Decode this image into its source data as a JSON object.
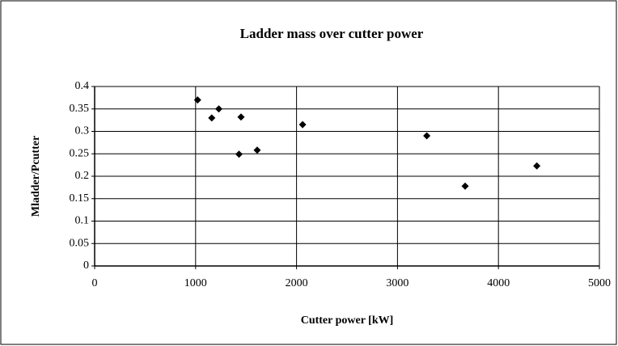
{
  "chart_data": {
    "type": "scatter",
    "title": "Ladder mass over cutter power",
    "x_label": "Cutter power [kW]",
    "y_label": "Mladder/Pcutter",
    "series": [
      {
        "name": "Mladder/Pcutter",
        "color": "#000000",
        "x": [
          1020,
          1160,
          1230,
          1450,
          1430,
          1610,
          2060,
          3290,
          3670,
          4380
        ],
        "values": [
          0.37,
          0.33,
          0.35,
          0.332,
          0.249,
          0.258,
          0.315,
          0.29,
          0.178,
          0.223
        ]
      }
    ],
    "xlim": [
      0,
      5000
    ],
    "xticks": [
      0,
      1000,
      2000,
      3000,
      4000,
      5000
    ],
    "ylim": [
      0,
      0.4
    ],
    "yticks": [
      0,
      0.05,
      0.1,
      0.15,
      0.2,
      0.25,
      0.3,
      0.35,
      0.4
    ],
    "grid": true
  }
}
